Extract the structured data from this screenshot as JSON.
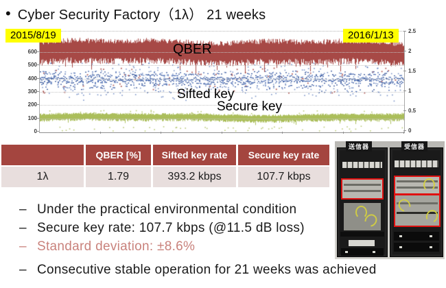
{
  "slide": {
    "title_bullet": "•",
    "title": "Cyber Security Factory（1λ） 21 weeks"
  },
  "chart": {
    "start_date": "2015/8/19",
    "end_date": "2016/1/13",
    "annotations": {
      "qber": "QBER",
      "sifted": "Sifted key",
      "secure": "Secure key"
    }
  },
  "chart_data": {
    "type": "scatter",
    "title": "QKD long-term operation: QBER, sifted key and secure key over 21 weeks",
    "x_range_dates": [
      "2015/8/19",
      "2016/1/13"
    ],
    "grid": "on",
    "left_axis": {
      "ticks": [
        600,
        500,
        400,
        300,
        200,
        100,
        0
      ],
      "range_displayed": [
        0,
        760
      ],
      "unit": "kbps"
    },
    "right_axis": {
      "ticks": [
        2.5,
        2,
        1.5,
        1,
        0.5,
        0
      ],
      "range": [
        0,
        2.5
      ],
      "unit": "%"
    },
    "series": [
      {
        "name": "QBER",
        "axis": "right",
        "color": "#a23f3c",
        "style": "dense-noise-band",
        "mean": 1.79,
        "band_range": [
          1.6,
          2.3
        ],
        "dip_min": 1.5
      },
      {
        "name": "Sifted key",
        "axis": "left",
        "color": "#4a6cb3",
        "style": "striped-scatter-band",
        "mean": 393.2,
        "band_range": [
          300,
          460
        ],
        "scatter_range": [
          235,
          520
        ]
      },
      {
        "name": "Secure key",
        "axis": "left",
        "color": "#a6ba52",
        "style": "dense-noise-band",
        "mean": 107.7,
        "band_range": [
          65,
          140
        ],
        "dip_min": 35
      }
    ]
  },
  "table": {
    "headers": [
      "",
      "QBER [%]",
      "Sifted key rate",
      "Secure key rate"
    ],
    "rows": [
      [
        "1λ",
        "1.79",
        "393.2 kbps",
        "107.7 kbps"
      ]
    ],
    "header_bg": "#a4453f",
    "row_bg": "#e8dedd"
  },
  "photo": {
    "transmitter_label": "送信器",
    "receiver_label": "受信器",
    "highlight_color": "#e01010"
  },
  "bullets": [
    {
      "marker": "–",
      "text": "Under the practical environmental condition",
      "color": "#1a1a1a"
    },
    {
      "marker": "–",
      "text": "Secure key rate: 107.7 kbps (@11.5 dB loss)",
      "color": "#1a1a1a"
    },
    {
      "marker": "–",
      "text": "Standard deviation: ±8.6%",
      "color": "#c9827c"
    },
    {
      "marker": "–",
      "text": "Consecutive stable operation for 21 weeks was achieved",
      "color": "#1a1a1a"
    }
  ]
}
